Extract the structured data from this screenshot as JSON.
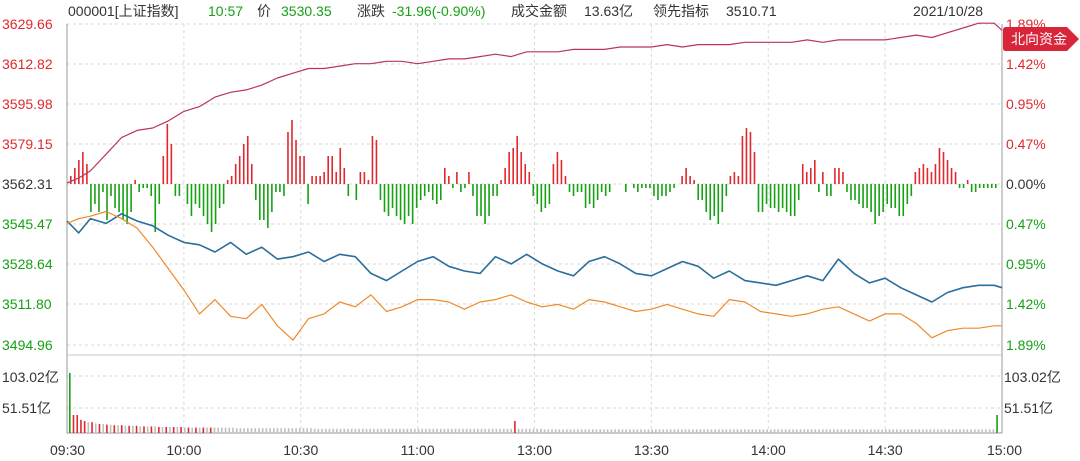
{
  "header": {
    "code_name": "000001[上证指数]",
    "time": "10:57",
    "price_label": "价",
    "price": "3530.35",
    "change_label": "涨跌",
    "change": "-31.96(-0.90%)",
    "turnover_label": "成交金额",
    "turnover": "13.63亿",
    "leader_label": "领先指标",
    "leader": "3510.71",
    "date": "2021/10/28"
  },
  "badge": {
    "label": "北向资金"
  },
  "colors": {
    "up_red": "#e0282e",
    "down_green": "#16a115",
    "price_line": "#2a6f9b",
    "leading_line": "#ef8a2a",
    "northbound_line": "#b8355c",
    "volume_gray": "#bfbfbf",
    "grid": "#d9d9d9",
    "axis_text": "#333333",
    "badge_bg": "#d8253a"
  },
  "chart_data": {
    "type": "line",
    "x_ticks": [
      "09:30",
      "10:00",
      "10:30",
      "11:00",
      "13:00",
      "13:30",
      "14:00",
      "14:30",
      "15:00"
    ],
    "y_left_ticks": [
      "3629.66",
      "3612.82",
      "3595.98",
      "3579.15",
      "3562.31",
      "3545.47",
      "3528.64",
      "3511.80",
      "3494.96"
    ],
    "y_right_ticks_top": [
      "1.89%",
      "1.42%",
      "0.95%",
      "0.47%",
      "0.00%"
    ],
    "y_right_ticks_bottom": [
      "0.47%",
      "0.95%",
      "1.42%",
      "1.89%"
    ],
    "volume_ticks": [
      "103.02亿",
      "51.51亿"
    ],
    "ylim": [
      3494.96,
      3629.66
    ],
    "prev_close": 3562.31,
    "series": [
      {
        "role": "price",
        "color": "#2a6f9b",
        "x": [
          0,
          3,
          6,
          10,
          14,
          18,
          22,
          26,
          30,
          34,
          38,
          42,
          46,
          50,
          54,
          58,
          62,
          66,
          70,
          74,
          78,
          82,
          86,
          90,
          94,
          98,
          102,
          106,
          110,
          114,
          118,
          122,
          126,
          130,
          134,
          138,
          142,
          146,
          150,
          154,
          158,
          162,
          166,
          170,
          174,
          178,
          182,
          186,
          190,
          194,
          198,
          202,
          206,
          210,
          214,
          218,
          222,
          226,
          230,
          234,
          238,
          240
        ],
        "y": [
          3547,
          3542,
          3548,
          3546,
          3550,
          3547,
          3545,
          3541,
          3538,
          3537,
          3534,
          3538,
          3533,
          3536,
          3531,
          3532,
          3534,
          3530,
          3533,
          3532,
          3525,
          3522,
          3526,
          3530,
          3532,
          3528,
          3526,
          3525,
          3532,
          3529,
          3533,
          3529,
          3526,
          3524,
          3530,
          3532,
          3529,
          3525,
          3524,
          3527,
          3530,
          3528,
          3523,
          3526,
          3522,
          3521,
          3520,
          3522,
          3524,
          3522,
          3531,
          3525,
          3521,
          3523,
          3519,
          3516,
          3513,
          3517,
          3519,
          3520,
          3520,
          3519
        ]
      },
      {
        "role": "leading",
        "color": "#ef8a2a",
        "x": [
          0,
          3,
          6,
          10,
          14,
          18,
          22,
          26,
          30,
          34,
          38,
          42,
          46,
          50,
          54,
          58,
          62,
          66,
          70,
          74,
          78,
          82,
          86,
          90,
          94,
          98,
          102,
          106,
          110,
          114,
          118,
          122,
          126,
          130,
          134,
          138,
          142,
          146,
          150,
          154,
          158,
          162,
          166,
          170,
          174,
          178,
          182,
          186,
          190,
          194,
          198,
          202,
          206,
          210,
          214,
          218,
          222,
          226,
          230,
          234,
          238,
          240
        ],
        "y": [
          3546,
          3548,
          3549,
          3551,
          3548,
          3544,
          3536,
          3527,
          3518,
          3508,
          3514,
          3507,
          3506,
          3512,
          3503,
          3497,
          3506,
          3508,
          3513,
          3511,
          3516,
          3509,
          3511,
          3514,
          3514,
          3513,
          3510,
          3513,
          3514,
          3516,
          3513,
          3511,
          3512,
          3510,
          3514,
          3513,
          3511,
          3509,
          3510,
          3512,
          3510,
          3508,
          3507,
          3514,
          3513,
          3509,
          3508,
          3507,
          3508,
          3510,
          3511,
          3508,
          3505,
          3508,
          3508,
          3504,
          3498,
          3501,
          3502,
          3502,
          3503,
          3503
        ]
      },
      {
        "role": "northbound",
        "color": "#b8355c",
        "x": [
          0,
          3,
          6,
          10,
          14,
          18,
          22,
          26,
          30,
          34,
          38,
          42,
          46,
          50,
          54,
          58,
          62,
          66,
          70,
          74,
          78,
          82,
          86,
          90,
          94,
          98,
          102,
          106,
          110,
          114,
          118,
          122,
          126,
          130,
          134,
          138,
          142,
          146,
          150,
          154,
          158,
          162,
          166,
          170,
          174,
          178,
          182,
          186,
          190,
          194,
          198,
          202,
          206,
          210,
          214,
          218,
          222,
          226,
          230,
          234,
          238,
          240
        ],
        "y": [
          3563,
          3565,
          3568,
          3575,
          3582,
          3585,
          3586,
          3589,
          3593,
          3595,
          3599,
          3601,
          3602,
          3604,
          3607,
          3609,
          3611,
          3611,
          3612,
          3613,
          3613,
          3614,
          3614,
          3613,
          3614,
          3615,
          3615,
          3616,
          3617,
          3616,
          3618,
          3618,
          3618,
          3619,
          3619,
          3619,
          3620,
          3620,
          3620,
          3621,
          3620,
          3621,
          3621,
          3621,
          3622,
          3622,
          3622,
          3622,
          3623,
          3622,
          3623,
          3623,
          3623,
          3623,
          3624,
          3625,
          3624,
          3626,
          3628,
          3630,
          3630,
          3627
        ]
      }
    ],
    "breadth_bars": [
      2,
      4,
      6,
      8,
      5,
      -7,
      -5,
      -7,
      -2,
      -9,
      -3,
      -6,
      -7,
      -9,
      -10,
      -7,
      1,
      -2,
      -1,
      -1,
      -3,
      -12,
      -5,
      7,
      15,
      10,
      -3,
      -3,
      0,
      -5,
      -8,
      -5,
      -6,
      -8,
      -10,
      -12,
      -10,
      -6,
      -5,
      1,
      2,
      5,
      7,
      10,
      12,
      5,
      -4,
      -9,
      -9,
      -11,
      -7,
      -2,
      -2,
      -3,
      13,
      16,
      11,
      7,
      7,
      -5,
      2,
      2,
      2,
      3,
      7,
      7,
      3,
      9,
      4,
      -3,
      0,
      -4,
      3,
      3,
      1,
      12,
      11,
      -4,
      -7,
      -8,
      -6,
      -8,
      -9,
      -10,
      -8,
      -10,
      -6,
      -4,
      -3,
      -2,
      -4,
      -5,
      -4,
      4,
      2,
      -1,
      3,
      -2,
      -1,
      3,
      -3,
      -8,
      -8,
      -10,
      -8,
      -3,
      -3,
      1,
      4,
      8,
      9,
      12,
      8,
      5,
      3,
      -3,
      -5,
      -7,
      -6,
      -5,
      5,
      8,
      6,
      2,
      -2,
      -3,
      -2,
      -2,
      -6,
      -5,
      -6,
      -4,
      -2,
      -3,
      -2,
      0,
      0,
      0,
      -2,
      0,
      -1,
      -2,
      -1,
      -1,
      -1,
      -3,
      -4,
      -3,
      -3,
      -2,
      -1,
      0,
      2,
      4,
      2,
      1,
      -4,
      -4,
      -7,
      -9,
      -8,
      -10,
      -7,
      -3,
      2,
      3,
      2,
      12,
      14,
      13,
      8,
      -7,
      -7,
      -5,
      -6,
      -6,
      -7,
      -6,
      -7,
      -8,
      -8,
      -4,
      5,
      3,
      4,
      6,
      -2,
      3,
      -3,
      -3,
      4,
      4,
      3,
      -2,
      -4,
      -4,
      -5,
      -6,
      -6,
      -7,
      -10,
      -8,
      -7,
      -5,
      -6,
      -6,
      -8,
      -8,
      -5,
      -3,
      3,
      4,
      5,
      4,
      3,
      5,
      9,
      8,
      6,
      4,
      3,
      -1,
      -1,
      1,
      -2,
      -2,
      -1,
      -1,
      -1,
      -1,
      -1
    ],
    "volume": [
      100,
      30,
      30,
      22,
      20,
      18,
      18,
      16,
      15,
      15,
      14,
      14,
      13,
      13,
      13,
      12,
      12,
      12,
      12,
      11,
      11,
      11,
      11,
      11,
      10,
      10,
      10,
      10,
      10,
      10,
      10,
      9,
      9,
      9,
      9,
      9,
      9,
      9,
      9,
      9,
      9,
      9,
      9,
      9,
      9,
      8,
      8,
      8,
      8,
      8,
      8,
      8,
      8,
      8,
      8,
      8,
      8,
      8,
      8,
      8,
      8,
      8,
      8,
      8,
      8,
      8,
      7,
      7,
      7,
      7,
      7,
      7,
      7,
      7,
      7,
      7,
      7,
      7,
      7,
      7,
      7,
      7,
      7,
      7,
      7,
      7,
      7,
      7,
      7,
      7,
      7,
      7,
      7,
      7,
      7,
      7,
      7,
      7,
      7,
      7,
      7,
      7,
      7,
      7,
      7,
      7,
      7,
      7,
      7,
      7,
      7,
      7,
      7,
      7,
      7,
      7,
      7,
      7,
      7,
      7,
      20,
      7,
      7,
      7,
      7,
      7,
      7,
      7,
      6,
      6,
      6,
      6,
      6,
      6,
      6,
      6,
      6,
      6,
      6,
      6,
      6,
      6,
      6,
      6,
      6,
      6,
      6,
      6,
      6,
      6,
      6,
      6,
      6,
      6,
      6,
      6,
      6,
      6,
      6,
      6,
      6,
      6,
      6,
      6,
      6,
      6,
      6,
      6,
      6,
      6,
      6,
      6,
      6,
      6,
      6,
      6,
      6,
      6,
      6,
      6,
      6,
      6,
      6,
      6,
      6,
      6,
      6,
      6,
      6,
      6,
      6,
      6,
      6,
      6,
      6,
      6,
      6,
      6,
      6,
      6,
      6,
      6,
      6,
      6,
      6,
      6,
      6,
      6,
      6,
      6,
      6,
      6,
      6,
      6,
      6,
      6,
      6,
      6,
      6,
      6,
      6,
      6,
      6,
      6,
      6,
      6,
      6,
      6,
      6,
      6,
      6,
      6,
      6,
      6,
      6,
      6,
      6,
      6,
      6,
      6,
      6,
      6,
      6,
      6,
      6,
      6,
      6,
      6,
      6,
      6,
      30
    ]
  }
}
